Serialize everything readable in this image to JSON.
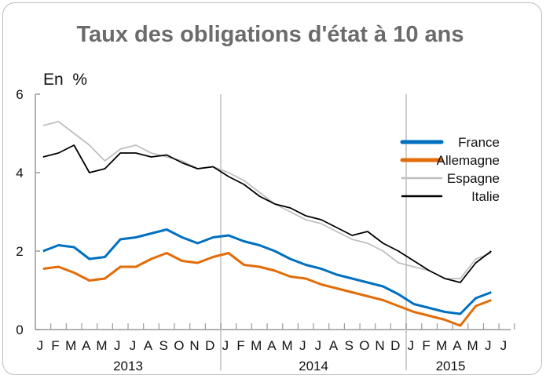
{
  "chart_data": {
    "type": "line",
    "title": "Taux des obligations d'état à 10 ans",
    "unit_label": "En  %",
    "ylim": [
      0,
      6
    ],
    "yticks": [
      "0",
      "2",
      "4",
      "6"
    ],
    "grid": false,
    "legend_position": "right",
    "month_labels": [
      "J",
      "F",
      "M",
      "A",
      "M",
      "J",
      "J",
      "A",
      "S",
      "O",
      "N",
      "D",
      "J",
      "F",
      "M",
      "A",
      "M",
      "J",
      "J",
      "A",
      "S",
      "O",
      "N",
      "D",
      "J",
      "F",
      "M",
      "A",
      "M",
      "J",
      "J"
    ],
    "year_labels": [
      "2013",
      "2014",
      "2015"
    ],
    "x_dates": [
      "2013-01",
      "2013-02",
      "2013-03",
      "2013-04",
      "2013-05",
      "2013-06",
      "2013-07",
      "2013-08",
      "2013-09",
      "2013-10",
      "2013-11",
      "2013-12",
      "2014-01",
      "2014-02",
      "2014-03",
      "2014-04",
      "2014-05",
      "2014-06",
      "2014-07",
      "2014-08",
      "2014-09",
      "2014-10",
      "2014-11",
      "2014-12",
      "2015-01",
      "2015-02",
      "2015-03",
      "2015-04",
      "2015-05",
      "2015-06"
    ],
    "series": [
      {
        "name": "France",
        "color": "#0070c0",
        "values": [
          2.0,
          2.15,
          2.1,
          1.8,
          1.85,
          2.3,
          2.35,
          2.45,
          2.55,
          2.35,
          2.2,
          2.35,
          2.4,
          2.25,
          2.15,
          2.0,
          1.8,
          1.65,
          1.55,
          1.4,
          1.3,
          1.2,
          1.1,
          0.9,
          0.65,
          0.55,
          0.45,
          0.4,
          0.8,
          0.95
        ]
      },
      {
        "name": "Allemagne",
        "color": "#e36c09",
        "values": [
          1.55,
          1.6,
          1.45,
          1.25,
          1.3,
          1.6,
          1.6,
          1.8,
          1.95,
          1.75,
          1.7,
          1.85,
          1.95,
          1.65,
          1.6,
          1.5,
          1.35,
          1.3,
          1.15,
          1.05,
          0.95,
          0.85,
          0.75,
          0.6,
          0.45,
          0.35,
          0.25,
          0.1,
          0.6,
          0.75
        ]
      },
      {
        "name": "Espagne",
        "color": "#bfbfbf",
        "values": [
          5.2,
          5.3,
          5.0,
          4.7,
          4.3,
          4.6,
          4.7,
          4.5,
          4.4,
          4.3,
          4.1,
          4.15,
          4.0,
          3.8,
          3.5,
          3.2,
          3.0,
          2.8,
          2.7,
          2.5,
          2.3,
          2.2,
          2.0,
          1.7,
          1.6,
          1.5,
          1.3,
          1.3,
          1.8,
          1.95
        ]
      },
      {
        "name": "Italie",
        "color": "#000000",
        "values": [
          4.4,
          4.5,
          4.7,
          4.0,
          4.1,
          4.5,
          4.5,
          4.4,
          4.45,
          4.25,
          4.1,
          4.15,
          3.9,
          3.7,
          3.4,
          3.2,
          3.1,
          2.9,
          2.8,
          2.6,
          2.4,
          2.5,
          2.2,
          2.0,
          1.75,
          1.5,
          1.3,
          1.2,
          1.7,
          2.0
        ]
      }
    ]
  }
}
